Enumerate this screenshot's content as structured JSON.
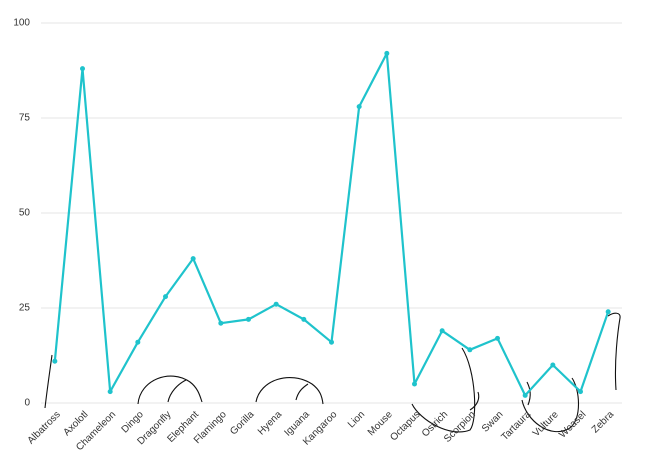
{
  "chart_data": {
    "type": "line",
    "categories": [
      "Albatross",
      "Axolotl",
      "Chameleon",
      "Dingo",
      "Dragonfly",
      "Elephant",
      "Flamingo",
      "Gorilla",
      "Hyena",
      "Iguana",
      "Kangaroo",
      "Lion",
      "Mouse",
      "Octapus",
      "Ostrich",
      "Scorpion",
      "Swan",
      "Tartaura",
      "Vulture",
      "Weasel",
      "Zebra"
    ],
    "values": [
      11,
      88,
      3,
      16,
      28,
      38,
      21,
      22,
      26,
      22,
      16,
      78,
      92,
      5,
      19,
      14,
      17,
      2,
      10,
      3,
      24
    ],
    "color": "#1fc3cc",
    "ylim": [
      0,
      100
    ],
    "yticks": [
      0,
      25,
      50,
      75,
      100
    ],
    "grid": true
  }
}
